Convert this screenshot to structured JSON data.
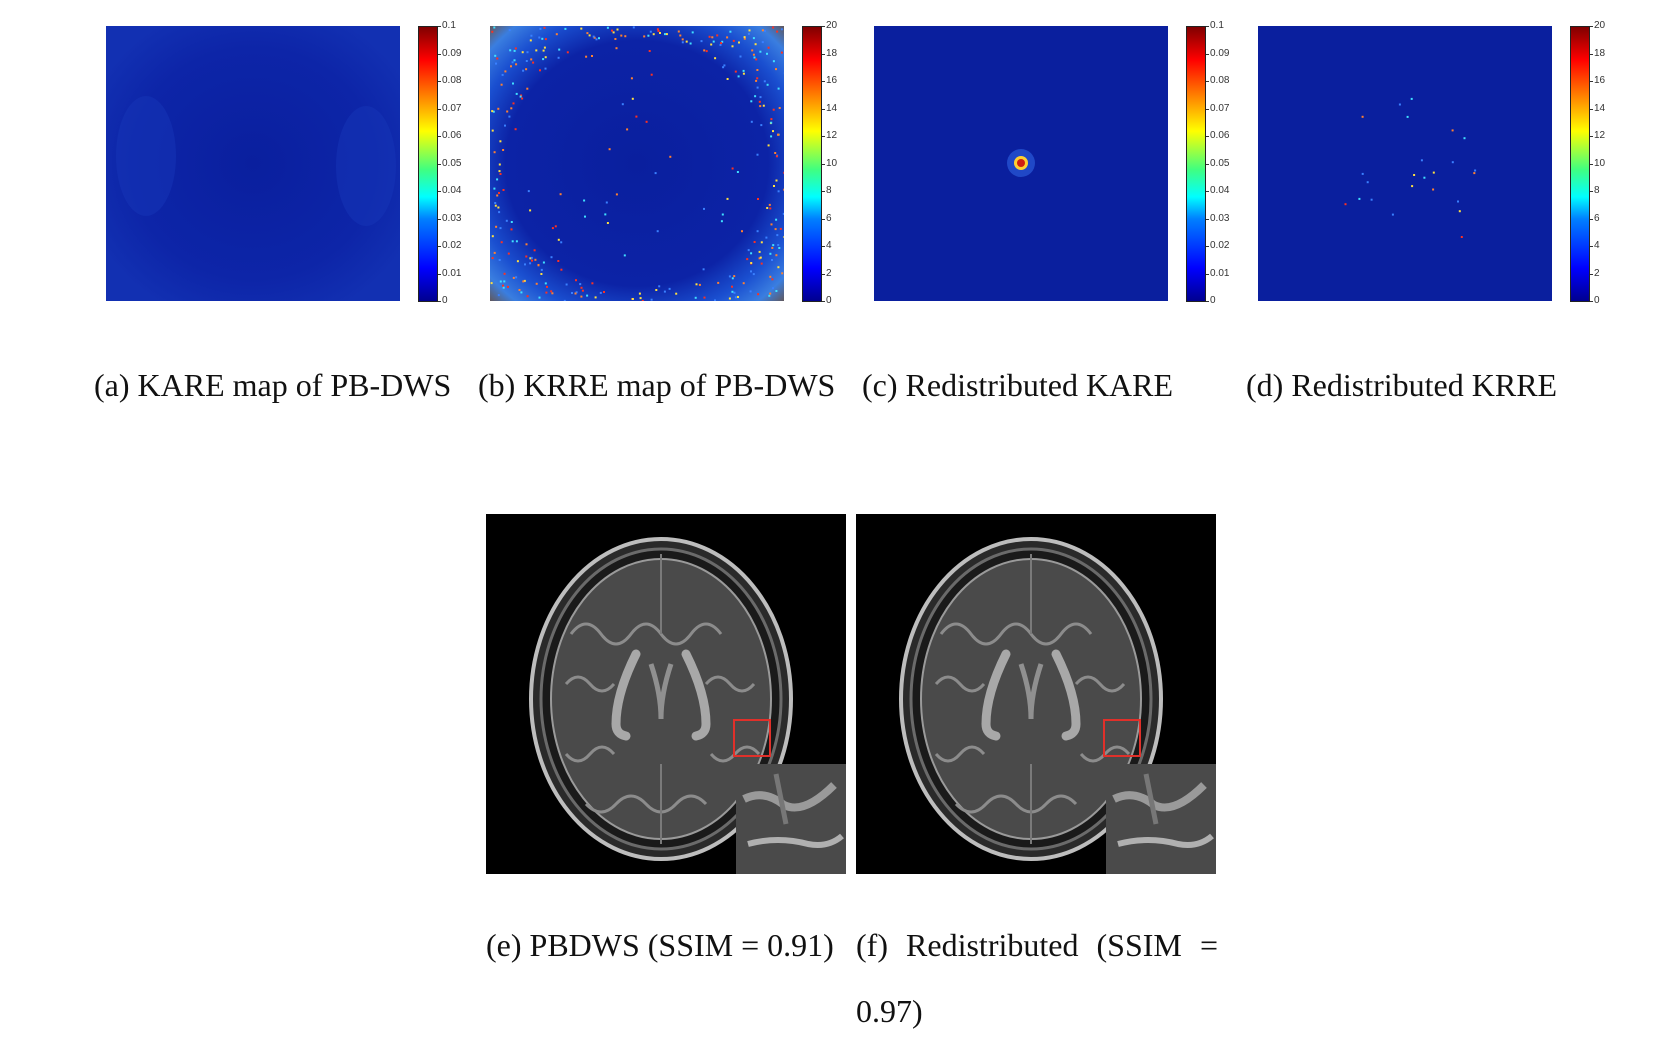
{
  "colorbar_a": {
    "ticks": [
      "0.1",
      "0.09",
      "0.08",
      "0.07",
      "0.06",
      "0.05",
      "0.04",
      "0.03",
      "0.02",
      "0.01",
      "0"
    ]
  },
  "colorbar_b": {
    "ticks": [
      "20",
      "18",
      "16",
      "14",
      "12",
      "10",
      "8",
      "6",
      "4",
      "2",
      "0"
    ]
  },
  "captions": {
    "a": "(a) KARE map of PB-DWS",
    "b": "(b) KRRE map of PB-DWS",
    "c": "(c) Redistributed KARE",
    "d": "(d) Redistributed KRRE",
    "e": "(e) PBDWS (SSIM = 0.91)",
    "f": "(f) Redistributed (SSIM = 0.97)"
  },
  "colors": {
    "map_background": "#0a1f9e",
    "roi_box": "#e0302a"
  }
}
